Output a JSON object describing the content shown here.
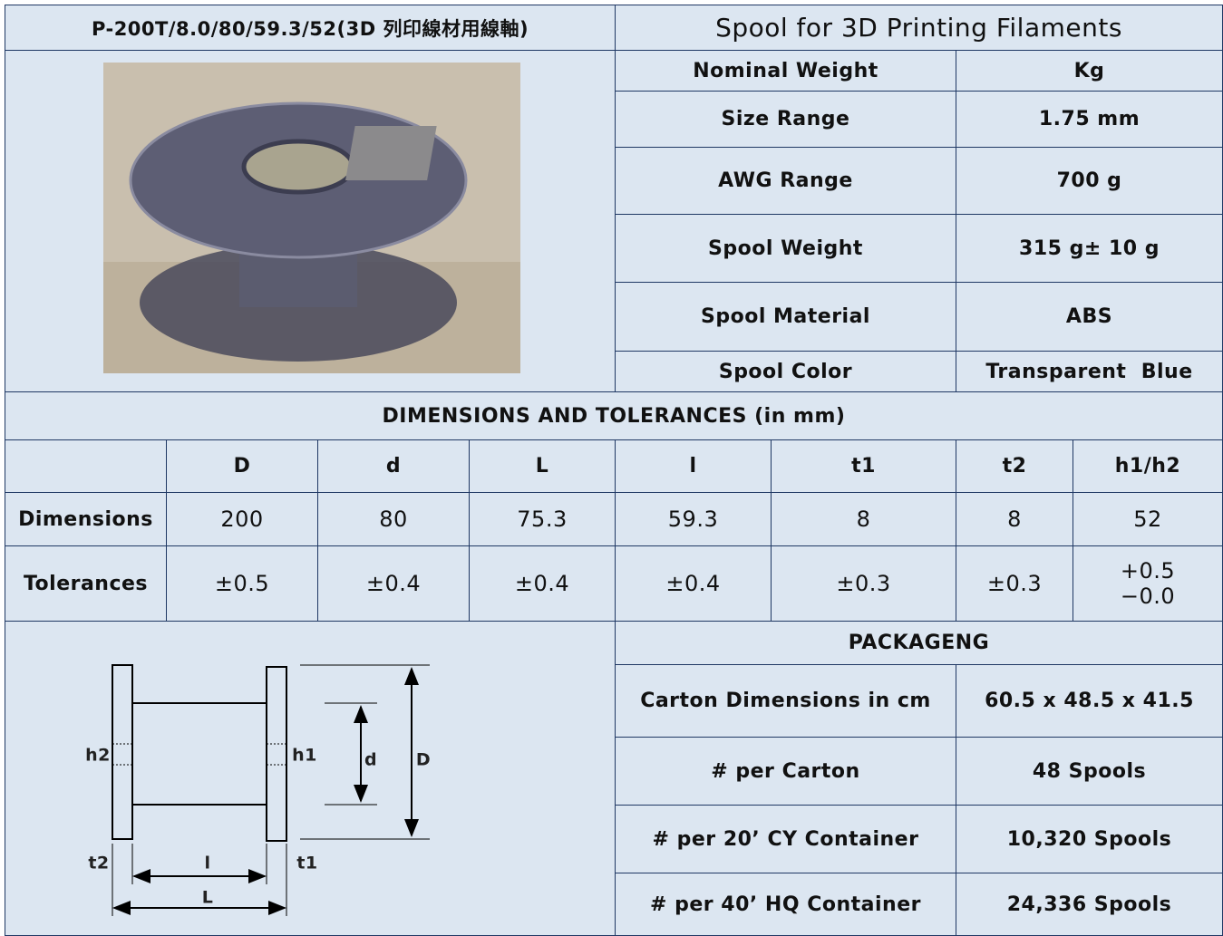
{
  "header": {
    "title": "P-200T/8.0/80/59.3/52(3D 列印線材用線軸)",
    "product": "Spool for 3D Printing Filaments"
  },
  "specs": {
    "rows": [
      [
        "Nominal Weight",
        "Kg"
      ],
      [
        "Size Range",
        "1.75 mm"
      ],
      [
        "AWG Range",
        "700 g"
      ],
      [
        "Spool Weight",
        "315 g± 10 g"
      ],
      [
        "Spool Material",
        "ABS"
      ],
      [
        "Spool Color",
        "Transparent  Blue"
      ]
    ]
  },
  "dimensions": {
    "title": "DIMENSIONS AND TOLERANCES (in mm)",
    "columns": [
      "D",
      "d",
      "L",
      "l",
      "t1",
      "t2",
      "h1/h2"
    ],
    "rows": [
      {
        "label": "Dimensions",
        "values": [
          "200",
          "80",
          "75.3",
          "59.3",
          "8",
          "8",
          "52"
        ]
      },
      {
        "label": "Tolerances",
        "values": [
          "±0.5",
          "±0.4",
          "±0.4",
          "±0.4",
          "±0.3",
          "±0.3",
          [
            "+0.5",
            "−0.0"
          ]
        ]
      }
    ]
  },
  "packaging": {
    "title": "PACKAGENG",
    "rows": [
      [
        "Carton Dimensions in cm",
        "60.5 x 48.5 x 41.5"
      ],
      [
        "# per Carton",
        "48 Spools"
      ],
      [
        "# per 20’ CY Container",
        "10,320 Spools"
      ],
      [
        "# per 40’ HQ Container",
        "24,336 Spools"
      ]
    ]
  },
  "diagram": {
    "labels": [
      "h2",
      "h1",
      "d",
      "D",
      "t2",
      "l",
      "t1",
      "L"
    ]
  }
}
